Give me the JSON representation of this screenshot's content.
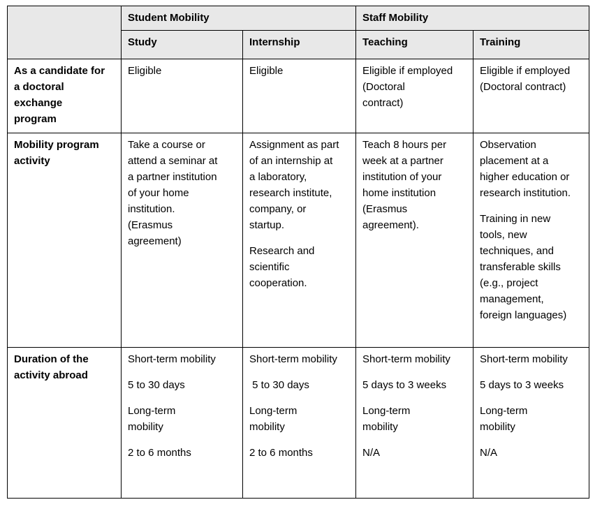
{
  "table": {
    "colors": {
      "header_bg": "#e8e8e8",
      "border": "#000000",
      "cell_bg": "#ffffff",
      "text": "#000000"
    },
    "header": {
      "corner": "",
      "groups": [
        {
          "key": "student-mobility",
          "label": "Student Mobility",
          "span": 2
        },
        {
          "key": "staff-mobility",
          "label": "Staff Mobility",
          "span": 2
        }
      ],
      "columns": [
        "Study",
        "Internship",
        "Teaching",
        "Training"
      ],
      "column_keys": [
        "study",
        "internship",
        "teaching",
        "training"
      ]
    },
    "rows": [
      {
        "key": "doctoral-candidate-eligibility",
        "label": "As a candidate for\na doctoral\nexchange\nprogram",
        "cells": [
          [
            "Eligible"
          ],
          [
            "Eligible"
          ],
          [
            "Eligible if employed\n(Doctoral\ncontract)"
          ],
          [
            "Eligible if employed\n(Doctoral contract)"
          ]
        ]
      },
      {
        "key": "mobility-program-activity",
        "label": "Mobility program\nactivity",
        "cells": [
          [
            "Take a course or\nattend a seminar at\na partner institution\nof your home\ninstitution.\n(Erasmus\nagreement)"
          ],
          [
            "Assignment as part\nof an internship at\na laboratory,\nresearch institute,\ncompany, or\nstartup.",
            "Research and\nscientific\ncooperation."
          ],
          [
            "Teach 8 hours per\nweek at a partner\ninstitution of your\nhome institution\n(Erasmus\nagreement)."
          ],
          [
            "Observation\nplacement at a\nhigher education or\nresearch institution.",
            "",
            "Training in new\ntools, new\ntechniques, and\ntransferable skills\n(e.g., project\nmanagement,\nforeign languages)"
          ]
        ]
      },
      {
        "key": "duration-of-activity-abroad",
        "label": "Duration of the\nactivity abroad",
        "cells": [
          [
            "Short-term mobility",
            "5 to 30 days",
            "Long-term\nmobility",
            "2 to 6 months"
          ],
          [
            "Short-term mobility",
            " 5 to 30 days",
            "Long-term\nmobility",
            "2 to 6 months"
          ],
          [
            "Short-term mobility",
            "5 days to 3 weeks",
            "Long-term\nmobility",
            "N/A"
          ],
          [
            "Short-term mobility",
            "5 days to 3 weeks",
            "Long-term\nmobility",
            "N/A"
          ]
        ]
      }
    ]
  }
}
